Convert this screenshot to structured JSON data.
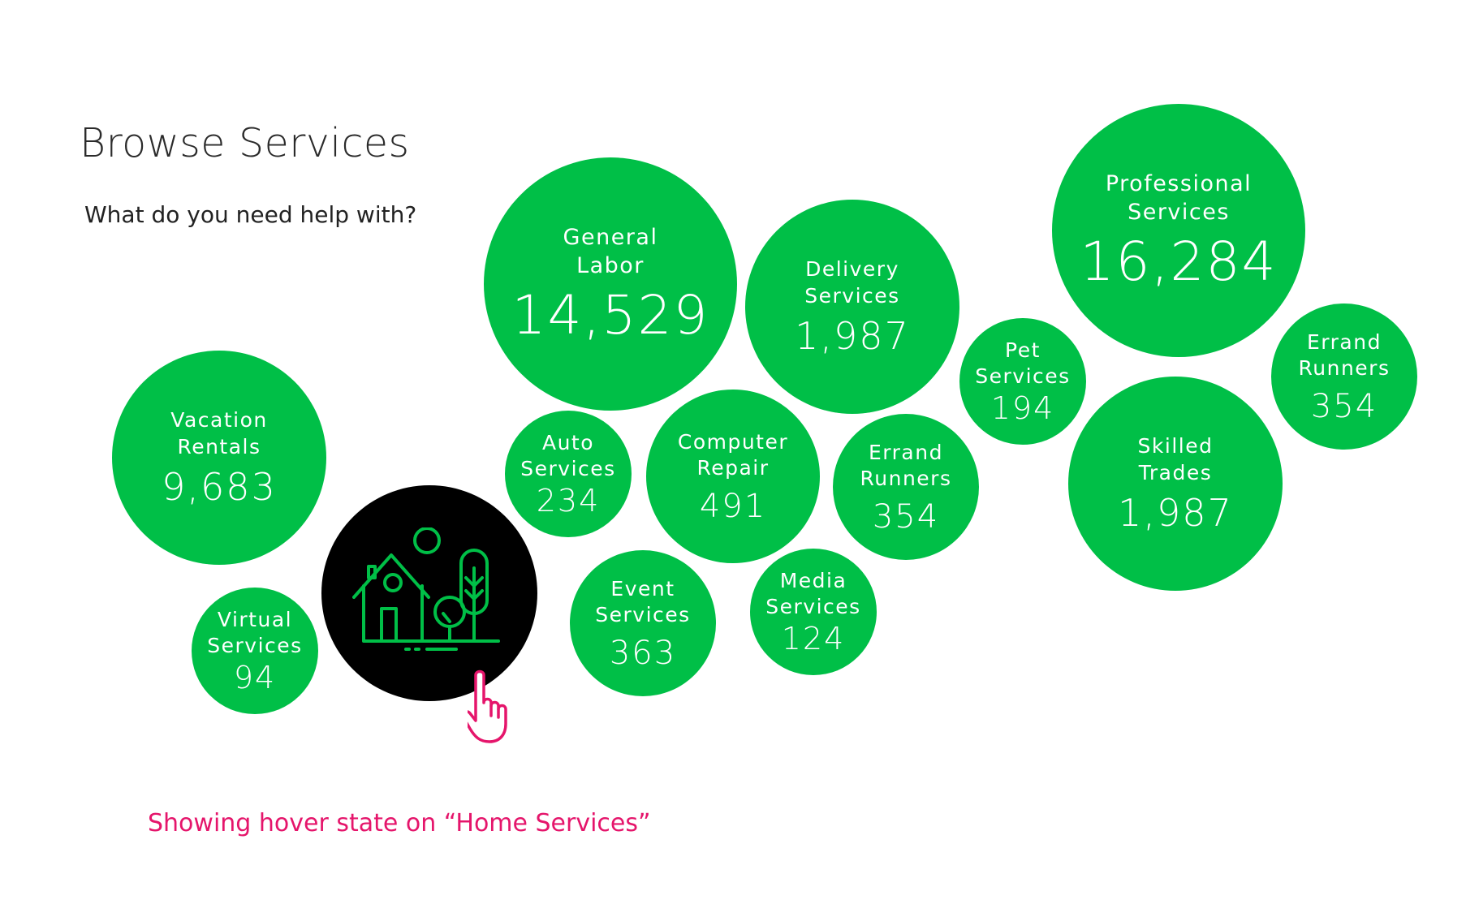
{
  "page": {
    "title": "Browse Services",
    "subtitle": "What do you need help with?",
    "caption": "Showing hover state on “Home Services”"
  },
  "colors": {
    "bubble": "#00bf47",
    "hover_bubble": "#000000",
    "caption": "#e5156b",
    "icon_stroke": "#00bf47"
  },
  "services": {
    "general_labor": {
      "label_1": "General",
      "label_2": "Labor",
      "count": "14,529"
    },
    "delivery": {
      "label_1": "Delivery",
      "label_2": "Services",
      "count": "1,987"
    },
    "professional": {
      "label_1": "Professional",
      "label_2": "Services",
      "count": "16,284"
    },
    "pet": {
      "label_1": "Pet",
      "label_2": "Services",
      "count": "194"
    },
    "errand_right": {
      "label_1": "Errand",
      "label_2": "Runners",
      "count": "354"
    },
    "vacation": {
      "label_1": "Vacation",
      "label_2": "Rentals",
      "count": "9,683"
    },
    "auto": {
      "label_1": "Auto",
      "label_2": "Services",
      "count": "234"
    },
    "computer": {
      "label_1": "Computer",
      "label_2": "Repair",
      "count": "491"
    },
    "errand_mid": {
      "label_1": "Errand",
      "label_2": "Runners",
      "count": "354"
    },
    "skilled": {
      "label_1": "Skilled",
      "label_2": "Trades",
      "count": "1,987"
    },
    "virtual": {
      "label_1": "Virtual",
      "label_2": "Services",
      "count": "94"
    },
    "event": {
      "label_1": "Event",
      "label_2": "Services",
      "count": "363"
    },
    "media": {
      "label_1": "Media",
      "label_2": "Services",
      "count": "124"
    },
    "home": {
      "icon": "home-garden-icon",
      "state": "hover"
    }
  }
}
